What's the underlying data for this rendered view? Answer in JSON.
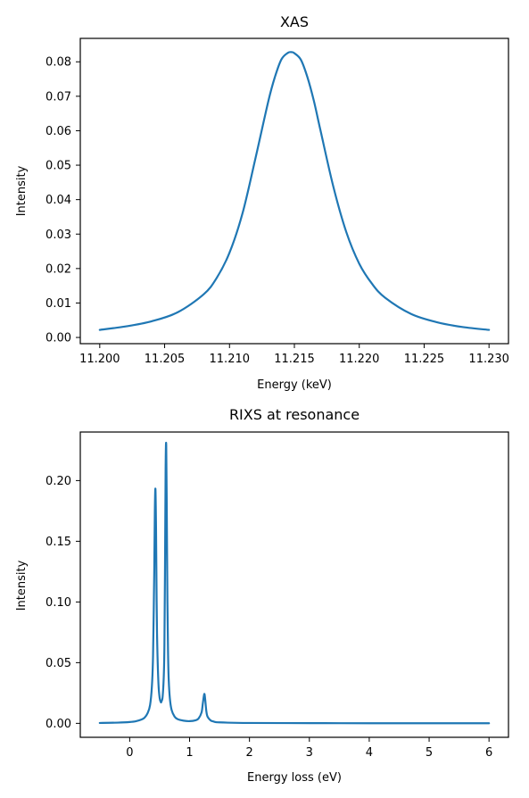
{
  "chart_data": [
    {
      "type": "line",
      "title": "XAS",
      "xlabel": "Energy (keV)",
      "ylabel": "Intensity",
      "xlim": [
        11.1985,
        11.2315
      ],
      "ylim": [
        -0.0018,
        0.0868
      ],
      "xticks": [
        11.2,
        11.205,
        11.21,
        11.215,
        11.22,
        11.225,
        11.23
      ],
      "xtick_labels": [
        "11.200",
        "11.205",
        "11.210",
        "11.215",
        "11.220",
        "11.225",
        "11.230"
      ],
      "yticks": [
        0.0,
        0.01,
        0.02,
        0.03,
        0.04,
        0.05,
        0.06,
        0.07,
        0.08
      ],
      "ytick_labels": [
        "0.00",
        "0.01",
        "0.02",
        "0.03",
        "0.04",
        "0.05",
        "0.06",
        "0.07",
        "0.08"
      ],
      "grid": false,
      "color": "#1f77b4",
      "series": [
        {
          "x": [
            11.2,
            11.202,
            11.204,
            11.206,
            11.208,
            11.209,
            11.21,
            11.211,
            11.212,
            11.213,
            11.2135,
            11.214,
            11.2145,
            11.2148,
            11.215,
            11.2155,
            11.216,
            11.2165,
            11.217,
            11.218,
            11.219,
            11.22,
            11.221,
            11.222,
            11.224,
            11.226,
            11.228,
            11.23
          ],
          "values": [
            0.0022,
            0.0032,
            0.0047,
            0.0073,
            0.0125,
            0.0172,
            0.0246,
            0.036,
            0.052,
            0.0687,
            0.0756,
            0.0807,
            0.0826,
            0.0828,
            0.0825,
            0.0806,
            0.0756,
            0.0687,
            0.0603,
            0.0438,
            0.0306,
            0.0214,
            0.0155,
            0.0115,
            0.0068,
            0.0044,
            0.003,
            0.0022
          ]
        }
      ]
    },
    {
      "type": "line",
      "title": "RIXS at resonance",
      "xlabel": "Energy loss (eV)",
      "ylabel": "Intensity",
      "xlim": [
        -0.825,
        6.325
      ],
      "ylim": [
        -0.0115,
        0.24
      ],
      "xticks": [
        0,
        1,
        2,
        3,
        4,
        5,
        6
      ],
      "xtick_labels": [
        "0",
        "1",
        "2",
        "3",
        "4",
        "5",
        "6"
      ],
      "yticks": [
        0.0,
        0.05,
        0.1,
        0.15,
        0.2
      ],
      "ytick_labels": [
        "0.00",
        "0.05",
        "0.10",
        "0.15",
        "0.20"
      ],
      "grid": false,
      "color": "#1f77b4",
      "series": [
        {
          "x": [
            -0.5,
            -0.2,
            0.0,
            0.1,
            0.2,
            0.25,
            0.3,
            0.34,
            0.37,
            0.39,
            0.41,
            0.42,
            0.43,
            0.44,
            0.45,
            0.46,
            0.48,
            0.5,
            0.52,
            0.53,
            0.55,
            0.57,
            0.58,
            0.59,
            0.6,
            0.61,
            0.62,
            0.63,
            0.64,
            0.65,
            0.67,
            0.7,
            0.75,
            0.8,
            0.9,
            1.0,
            1.1,
            1.15,
            1.2,
            1.22,
            1.24,
            1.25,
            1.26,
            1.28,
            1.3,
            1.35,
            1.4,
            1.5,
            2.0,
            3.0,
            4.0,
            5.0,
            6.0
          ],
          "values": [
            0.0003,
            0.0006,
            0.0011,
            0.0017,
            0.0032,
            0.0048,
            0.0085,
            0.015,
            0.03,
            0.056,
            0.125,
            0.175,
            0.193,
            0.16,
            0.1,
            0.065,
            0.033,
            0.021,
            0.0175,
            0.018,
            0.022,
            0.04,
            0.065,
            0.13,
            0.21,
            0.229,
            0.17,
            0.1,
            0.06,
            0.038,
            0.021,
            0.011,
            0.0055,
            0.0035,
            0.0022,
            0.0018,
            0.0025,
            0.004,
            0.009,
            0.016,
            0.023,
            0.024,
            0.02,
            0.01,
            0.0055,
            0.0025,
            0.0015,
            0.0008,
            0.0003,
            0.0002,
            0.0001,
            0.0001,
            0.0001
          ]
        }
      ]
    }
  ]
}
